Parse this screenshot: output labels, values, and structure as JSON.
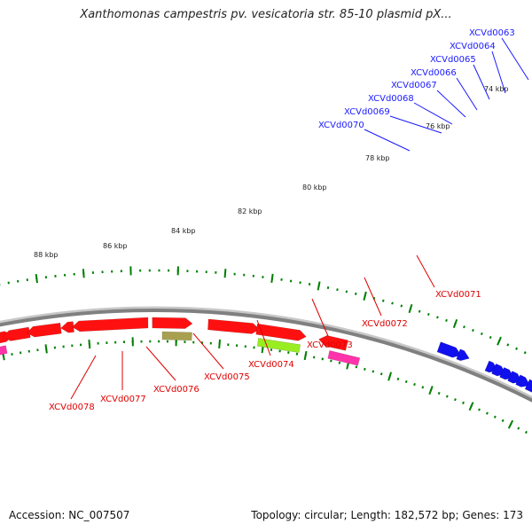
{
  "title": "Xanthomonas campestris pv. vesicatoria str. 85-10 plasmid pX...",
  "footer": {
    "accession": "Accession: NC_007507",
    "summary": "Topology: circular; Length: 182,572 bp; Genes: 173"
  },
  "colors": {
    "forward_gene": "#ff1010",
    "reverse_gene": "#ff1010",
    "blue_gene": "#1010ee",
    "backbone": "#808080",
    "tick": "#008000",
    "label_blue": "#1a1aff",
    "label_red": "#e00000",
    "pink_feature": "#ff33aa",
    "lime_feature": "#99ee22",
    "olive_feature": "#a8a050"
  },
  "scale_labels": [
    "74 kbp",
    "76 kbp",
    "78 kbp",
    "80 kbp",
    "82 kbp",
    "84 kbp",
    "86 kbp",
    "88 kbp"
  ],
  "blue_gene_labels": [
    "XCVd0063",
    "XCVd0064",
    "XCVd0065",
    "XCVd0066",
    "XCVd0067",
    "XCVd0068",
    "XCVd0069",
    "XCVd0070"
  ],
  "red_gene_labels": [
    "XCVd0071",
    "XCVd0072",
    "XCVd0073",
    "XCVd0074",
    "XCVd0075",
    "XCVd0076",
    "XCVd0077",
    "XCVd0078"
  ]
}
